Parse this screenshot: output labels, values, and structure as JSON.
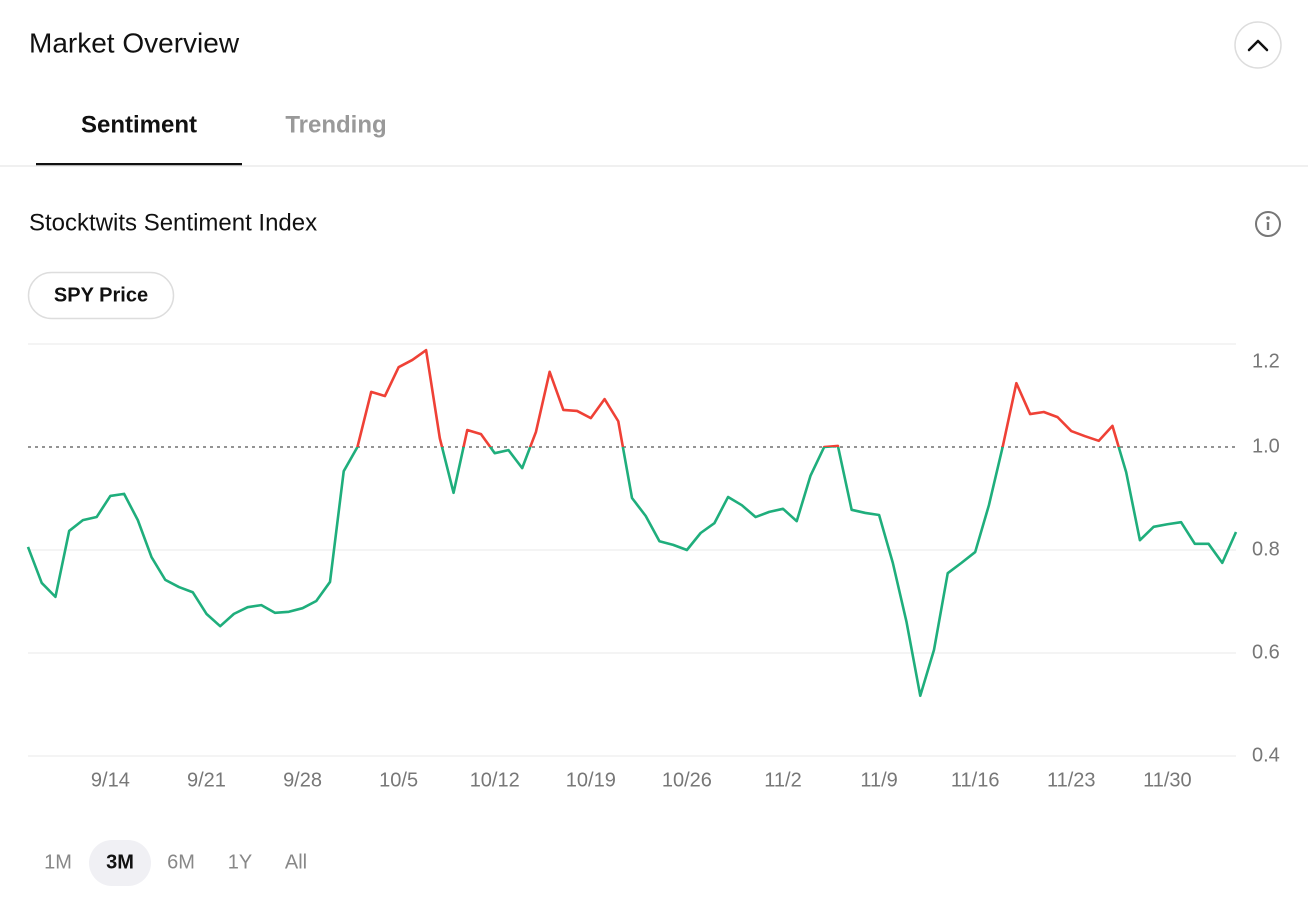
{
  "header": {
    "title": "Market Overview"
  },
  "tabs": [
    {
      "label": "Sentiment",
      "selected": true
    },
    {
      "label": "Trending",
      "selected": false
    }
  ],
  "section_title": "Stocktwits Sentiment Index",
  "toggle": "SPY Price",
  "chart_data": {
    "type": "line",
    "categories": [
      null,
      null,
      null,
      null,
      null,
      null,
      "9/14",
      null,
      null,
      null,
      null,
      null,
      null,
      "9/21",
      null,
      null,
      null,
      null,
      null,
      null,
      "9/28",
      null,
      null,
      null,
      null,
      null,
      null,
      "10/5",
      null,
      null,
      null,
      null,
      null,
      null,
      "10/12",
      null,
      null,
      null,
      null,
      null,
      null,
      "10/19",
      null,
      null,
      null,
      null,
      null,
      null,
      "10/26",
      null,
      null,
      null,
      null,
      null,
      null,
      "11/2",
      null,
      null,
      null,
      null,
      null,
      null,
      "11/9",
      null,
      null,
      null,
      null,
      null,
      null,
      "11/16",
      null,
      null,
      null,
      null,
      null,
      null,
      "11/23",
      null,
      null,
      null,
      null,
      null,
      null,
      "11/30",
      null,
      null,
      null,
      null,
      null
    ],
    "values": [
      0.806,
      0.736,
      0.709,
      0.837,
      0.858,
      0.864,
      0.905,
      0.909,
      0.858,
      0.786,
      0.742,
      0.728,
      0.718,
      0.676,
      0.652,
      0.676,
      0.689,
      0.693,
      0.678,
      0.68,
      0.687,
      0.701,
      0.738,
      0.953,
      1.0,
      1.107,
      1.099,
      1.155,
      1.169,
      1.188,
      1.017,
      0.911,
      1.033,
      1.025,
      0.988,
      0.994,
      0.959,
      1.029,
      1.146,
      1.072,
      1.07,
      1.056,
      1.093,
      1.05,
      0.901,
      0.866,
      0.817,
      0.81,
      0.8,
      0.833,
      0.852,
      0.903,
      0.887,
      0.864,
      0.874,
      0.88,
      0.856,
      0.944,
      1.0,
      1.002,
      0.878,
      0.872,
      0.868,
      0.775,
      0.66,
      0.517,
      0.606,
      0.755,
      0.775,
      0.796,
      0.887,
      1.0,
      1.124,
      1.064,
      1.068,
      1.058,
      1.031,
      1.021,
      1.012,
      1.041,
      0.951,
      0.819,
      0.845,
      0.85,
      0.854,
      0.812,
      0.812,
      0.775,
      0.835
    ],
    "threshold": 1,
    "above_color": "#ef4136",
    "below_color": "#1fae7c",
    "ylim": [
      0.4,
      1.2
    ],
    "yticks": [
      0.4,
      0.6,
      0.8,
      {
        "value": 1,
        "label": "1.0"
      },
      1.2
    ],
    "grid": true
  },
  "ranges": {
    "options": [
      "1M",
      "3M",
      "6M",
      "1Y",
      "All"
    ],
    "selected": "3M"
  }
}
